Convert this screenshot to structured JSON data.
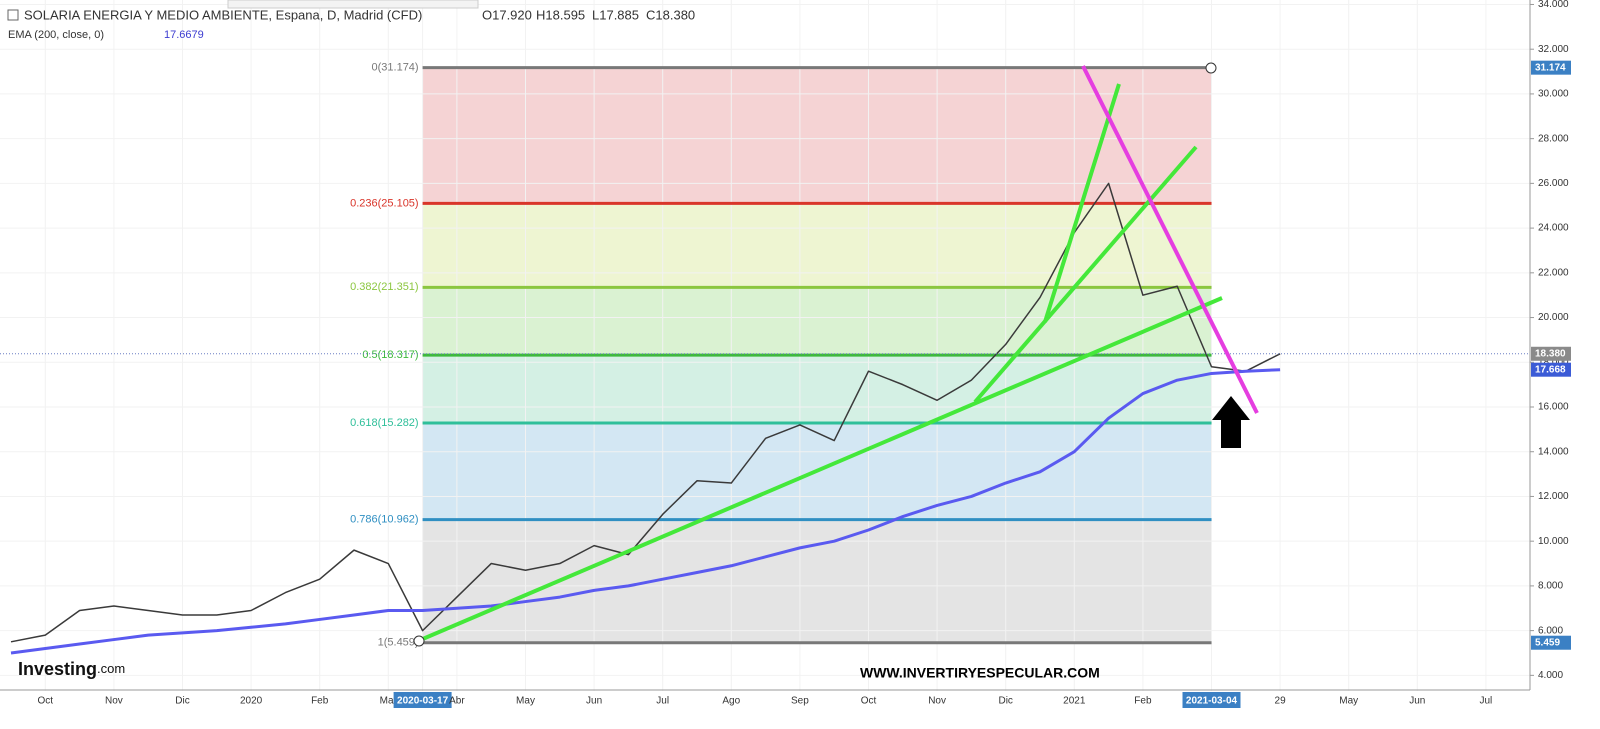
{
  "header": {
    "open": "O17.920",
    "high": "H18.595",
    "low": "L17.885",
    "close": "C18.380",
    "ema_value": "17.6679",
    "watermark": "WWW.INVERTIRYESPECULAR.COM",
    "logo": "Investing",
    "logo_suffix": ".com"
  },
  "chart_data": {
    "type": "line",
    "title": "SOLARIA ENERGIA Y MEDIO AMBIENTE, Espana, D, Madrid (CFD)",
    "categories": [
      null,
      "Oct",
      null,
      "Nov",
      null,
      "Dic",
      null,
      "2020",
      null,
      "Feb",
      null,
      "Mar",
      "2020-03-17",
      "Abr",
      null,
      "May",
      null,
      "Jun",
      null,
      "Jul",
      null,
      "Ago",
      null,
      "Sep",
      null,
      "Oct",
      null,
      "Nov",
      null,
      "Dic",
      null,
      "2021",
      null,
      "Feb",
      null,
      "2021-03-04",
      null,
      "29",
      null,
      "May",
      null,
      "Jun",
      null,
      "Jul",
      null
    ],
    "series": [
      {
        "name": "SOLARIA ENERGIA Y MEDIO AMBIENTE, Espana, D, Madrid (CFD)",
        "color": "#3a3a3a",
        "values": [
          5.5,
          5.8,
          6.9,
          7.1,
          6.9,
          6.7,
          6.7,
          6.9,
          7.7,
          8.3,
          9.6,
          9.0,
          6.0,
          7.5,
          9.0,
          8.7,
          9.0,
          9.8,
          9.4,
          11.2,
          12.7,
          12.6,
          14.6,
          15.2,
          14.5,
          17.6,
          17.0,
          16.3,
          17.2,
          18.8,
          20.9,
          23.8,
          26.0,
          21.0,
          21.4,
          17.8,
          17.6,
          18.38,
          null,
          null,
          null,
          null,
          null,
          null,
          null
        ]
      },
      {
        "name": "EMA (200, close, 0)",
        "color": "#5a5af0",
        "values": [
          5.0,
          5.2,
          5.4,
          5.6,
          5.8,
          5.9,
          6.0,
          6.15,
          6.3,
          6.5,
          6.7,
          6.9,
          6.9,
          7.0,
          7.1,
          7.3,
          7.5,
          7.8,
          8.0,
          8.3,
          8.6,
          8.9,
          9.3,
          9.7,
          10.0,
          10.5,
          11.1,
          11.6,
          12.0,
          12.6,
          13.1,
          14.0,
          15.5,
          16.6,
          17.2,
          17.5,
          17.6,
          17.668,
          null,
          null,
          null,
          null,
          null,
          null,
          null
        ]
      }
    ],
    "ylim": [
      3.3,
      34.2
    ],
    "yticks": [
      {
        "value": 4,
        "label": "4.000"
      },
      {
        "value": 6,
        "label": "6.000"
      },
      {
        "value": 8,
        "label": "8.000"
      },
      {
        "value": 10,
        "label": "10.000"
      },
      {
        "value": 12,
        "label": "12.000"
      },
      {
        "value": 14,
        "label": "14.000"
      },
      {
        "value": 16,
        "label": "16.000"
      },
      {
        "value": 18,
        "label": "18.000"
      },
      {
        "value": 20,
        "label": "20.000"
      },
      {
        "value": 22,
        "label": "22.000"
      },
      {
        "value": 24,
        "label": "24.000"
      },
      {
        "value": 26,
        "label": "26.000"
      },
      {
        "value": 28,
        "label": "28.000"
      },
      {
        "value": 30,
        "label": "30.000"
      },
      {
        "value": 32,
        "label": "32.000"
      },
      {
        "value": 34,
        "label": "34.000"
      }
    ],
    "fib_levels": [
      {
        "value": 31.174,
        "label": "0(31.174)",
        "color": "#787878",
        "zone_color": "#f5d3d4"
      },
      {
        "value": 25.105,
        "label": "0.236(25.105)",
        "color": "#d9352a",
        "zone_color": "#eef5d2"
      },
      {
        "value": 21.351,
        "label": "0.382(21.351)",
        "color": "#8bc63f",
        "zone_color": "#daf2d2"
      },
      {
        "value": 18.317,
        "label": "0.5(18.317)",
        "color": "#3cb93c",
        "zone_color": "#d4f0e4"
      },
      {
        "value": 15.282,
        "label": "0.618(15.282)",
        "color": "#2fbf9a",
        "zone_color": "#d3e7f3"
      },
      {
        "value": 10.962,
        "label": "0.786(10.962)",
        "color": "#2f8fc2",
        "zone_color": "#e4e4e4"
      },
      {
        "value": 5.459,
        "label": "1(5.459)",
        "color": "#787878"
      }
    ],
    "price_badges": [
      {
        "value": 31.174,
        "label": "31.174",
        "color": "#3b80c4"
      },
      {
        "value": 18.38,
        "label": "18.380",
        "color": "#8a8a8a"
      },
      {
        "value": 17.668,
        "label": "17.668",
        "color": "#3b5bd6"
      },
      {
        "value": 5.459,
        "label": "5.459",
        "color": "#3b80c4"
      }
    ]
  }
}
